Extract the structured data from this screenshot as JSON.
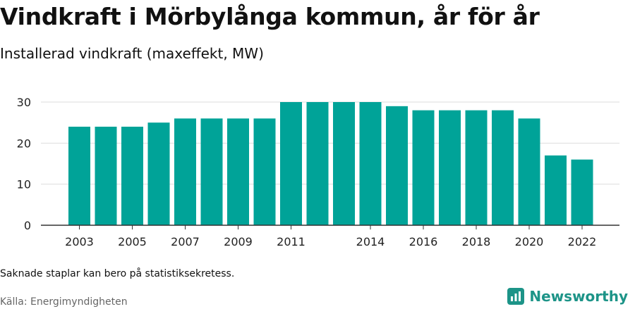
{
  "title": "Vindkraft i Mörbylånga kommun, år för år",
  "subtitle": "Installerad vindkraft (maxeffekt, MW)",
  "note": "Saknade staplar kan bero på statistiksekretess.",
  "source": "Källa: Energimyndigheten",
  "brand": {
    "name": "Newsworthy",
    "icon": "newsworthy-logo-icon",
    "color": "#1d9488"
  },
  "colors": {
    "bar": "#00a398",
    "grid": "#dddddd",
    "axis": "#333333"
  },
  "chart_data": {
    "type": "bar",
    "categories": [
      "2003",
      "2004",
      "2005",
      "2006",
      "2007",
      "2008",
      "2009",
      "2010",
      "2011",
      "2012",
      "2013",
      "2014",
      "2015",
      "2016",
      "2017",
      "2018",
      "2019",
      "2020",
      "2021",
      "2022"
    ],
    "values": [
      24,
      24,
      24,
      25,
      26,
      26,
      26,
      26,
      30,
      30,
      30,
      30,
      29,
      28,
      28,
      28,
      28,
      26,
      17,
      16
    ],
    "xtick_labels": [
      "2003",
      "2005",
      "2007",
      "2009",
      "2011",
      "2014",
      "2016",
      "2018",
      "2020",
      "2022"
    ],
    "yticks": [
      0,
      10,
      20,
      30
    ],
    "ylim": [
      0,
      32
    ],
    "grid": true,
    "xlabel": "",
    "ylabel": ""
  }
}
